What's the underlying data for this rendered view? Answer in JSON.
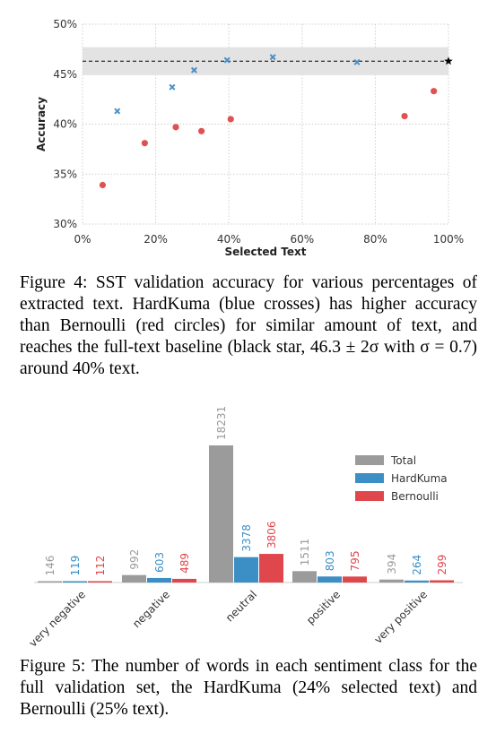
{
  "figures": [
    {
      "caption": "Figure 4: SST validation accuracy for various percentages of extracted text. HardKuma (blue crosses) has higher accuracy than Bernoulli (red circles) for similar amount of text, and reaches the full-text baseline (black star, 46.3 ± 2σ with σ = 0.7) around 40% text.",
      "chart_data": {
        "type": "scatter",
        "xlabel": "Selected Text",
        "ylabel": "Accuracy",
        "xlim": [
          0,
          100
        ],
        "ylim": [
          30,
          50
        ],
        "xticks": [
          "0%",
          "20%",
          "40%",
          "60%",
          "80%",
          "100%"
        ],
        "yticks": [
          "30%",
          "35%",
          "40%",
          "45%",
          "50%"
        ],
        "grid": true,
        "series": [
          {
            "marker": "cross",
            "color": "#4a8fc8",
            "points": [
              [
                9.5,
                41.3
              ],
              [
                24.5,
                43.7
              ],
              [
                30.5,
                45.4
              ],
              [
                39.5,
                46.4
              ],
              [
                52,
                46.7
              ],
              [
                75,
                46.2
              ]
            ]
          },
          {
            "marker": "circle",
            "color": "#e05252",
            "points": [
              [
                5.5,
                33.9
              ],
              [
                17,
                38.1
              ],
              [
                25.5,
                39.7
              ],
              [
                32.5,
                39.3
              ],
              [
                40.5,
                40.5
              ],
              [
                88,
                40.8
              ],
              [
                96,
                43.3
              ]
            ]
          }
        ],
        "baseline": {
          "value": 46.3,
          "band": [
            44.9,
            47.7
          ],
          "star_x": 100,
          "color": "#000000",
          "band_color": "#e3e3e3"
        }
      }
    },
    {
      "caption": "Figure 5: The number of words in each sentiment class for the full validation set, the HardKuma (24% selected text) and Bernoulli (25% text).",
      "chart_data": {
        "type": "bar",
        "categories": [
          "very negative",
          "negative",
          "neutral",
          "positive",
          "very positive"
        ],
        "series": [
          {
            "name": "Total",
            "color": "#9b9b9b",
            "values": [
              146,
              992,
              18231,
              1511,
              394
            ]
          },
          {
            "name": "HardKuma",
            "color": "#3b8fc4",
            "values": [
              119,
              603,
              3378,
              803,
              264
            ]
          },
          {
            "name": "Bernoulli",
            "color": "#e0474c",
            "values": [
              112,
              489,
              3806,
              795,
              299
            ]
          }
        ],
        "legend": "top-right",
        "grid": false
      }
    }
  ]
}
